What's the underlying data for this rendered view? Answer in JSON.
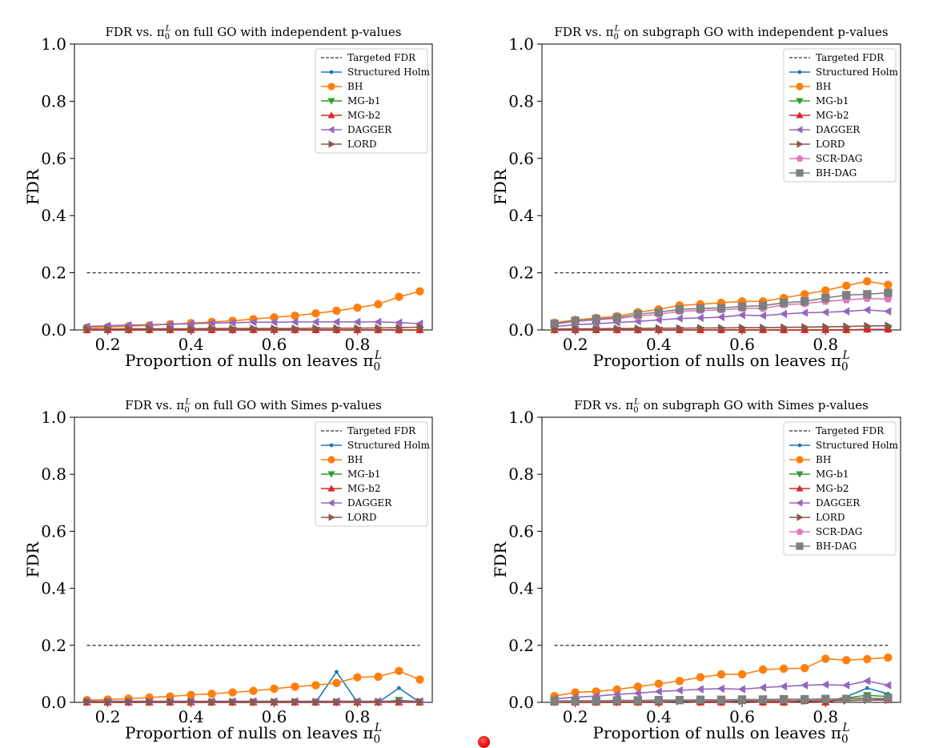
{
  "colors": {
    "target": "#333333",
    "Structured Holm": "#1f77b4",
    "BH": "#ff7f0e",
    "MG-b1": "#2ca02c",
    "MG-b2": "#d62728",
    "DAGGER": "#9467bd",
    "LORD": "#8c564b",
    "SCR-DAG": "#e377c2",
    "BH-DAG": "#7f7f7f"
  },
  "chart_data": [
    {
      "type": "line",
      "title": "FDR vs. π₀ᴸ on full GO with independent p-values",
      "xlabel": "Proportion of nulls on leaves π₀ᴸ",
      "ylabel": "FDR",
      "xlim": [
        0.12,
        0.98
      ],
      "ylim": [
        0,
        1.0
      ],
      "x_ticks": [
        "0.2",
        "0.4",
        "0.6",
        "0.8"
      ],
      "y_ticks": [
        "0.0",
        "0.2",
        "0.4",
        "0.6",
        "0.8",
        "1.0"
      ],
      "grid": false,
      "legend_position": "top-right",
      "x": [
        0.15,
        0.2,
        0.25,
        0.3,
        0.35,
        0.4,
        0.45,
        0.5,
        0.55,
        0.6,
        0.65,
        0.7,
        0.75,
        0.8,
        0.85,
        0.9,
        0.95
      ],
      "target": {
        "name": "Targeted FDR",
        "value": 0.2
      },
      "series": [
        {
          "name": "Structured Holm",
          "marker": "point",
          "values": [
            0,
            0,
            0,
            0,
            0,
            0,
            0,
            0,
            0,
            0,
            0,
            0,
            0,
            0,
            0,
            0,
            0
          ]
        },
        {
          "name": "BH",
          "marker": "circle",
          "values": [
            0.008,
            0.01,
            0.013,
            0.016,
            0.02,
            0.024,
            0.028,
            0.032,
            0.038,
            0.044,
            0.05,
            0.058,
            0.067,
            0.078,
            0.09,
            0.116,
            0.135
          ]
        },
        {
          "name": "MG-b1",
          "marker": "triangle-down",
          "values": [
            0,
            0,
            0,
            0,
            0,
            0,
            0,
            0,
            0,
            0,
            0,
            0,
            0,
            0,
            0,
            0,
            0
          ]
        },
        {
          "name": "MG-b2",
          "marker": "triangle-up",
          "values": [
            0,
            0,
            0,
            0,
            0,
            0,
            0,
            0,
            0,
            0,
            0,
            0,
            0,
            0,
            0,
            0,
            0
          ]
        },
        {
          "name": "DAGGER",
          "marker": "triangle-left",
          "values": [
            0.012,
            0.015,
            0.017,
            0.018,
            0.02,
            0.022,
            0.024,
            0.025,
            0.027,
            0.027,
            0.028,
            0.028,
            0.028,
            0.028,
            0.028,
            0.026,
            0.022
          ]
        },
        {
          "name": "LORD",
          "marker": "triangle-right",
          "values": [
            0.003,
            0.003,
            0.004,
            0.004,
            0.004,
            0.004,
            0.005,
            0.005,
            0.005,
            0.005,
            0.005,
            0.006,
            0.006,
            0.006,
            0.007,
            0.008,
            0.01
          ]
        }
      ]
    },
    {
      "type": "line",
      "title": "FDR vs. π₀ᴸ on subgraph GO with independent p-values",
      "xlabel": "Proportion of nulls on leaves π₀ᴸ",
      "ylabel": "FDR",
      "xlim": [
        0.12,
        0.98
      ],
      "ylim": [
        0,
        1.0
      ],
      "x_ticks": [
        "0.2",
        "0.4",
        "0.6",
        "0.8"
      ],
      "y_ticks": [
        "0.0",
        "0.2",
        "0.4",
        "0.6",
        "0.8",
        "1.0"
      ],
      "grid": false,
      "legend_position": "top-right",
      "x": [
        0.15,
        0.2,
        0.25,
        0.3,
        0.35,
        0.4,
        0.45,
        0.5,
        0.55,
        0.6,
        0.65,
        0.7,
        0.75,
        0.8,
        0.85,
        0.9,
        0.95
      ],
      "target": {
        "name": "Targeted FDR",
        "value": 0.2
      },
      "series": [
        {
          "name": "Structured Holm",
          "marker": "point",
          "values": [
            0,
            0,
            0,
            0,
            0,
            0,
            0,
            0,
            0,
            0,
            0,
            0,
            0,
            0,
            0,
            0,
            0
          ]
        },
        {
          "name": "BH",
          "marker": "circle",
          "values": [
            0.025,
            0.035,
            0.042,
            0.048,
            0.062,
            0.072,
            0.086,
            0.09,
            0.095,
            0.1,
            0.1,
            0.112,
            0.125,
            0.138,
            0.155,
            0.17,
            0.158
          ]
        },
        {
          "name": "MG-b1",
          "marker": "triangle-down",
          "values": [
            0,
            0,
            0,
            0,
            0,
            0,
            0,
            0,
            0,
            0,
            0,
            0,
            0,
            0,
            0,
            0.002,
            0.002
          ]
        },
        {
          "name": "MG-b2",
          "marker": "triangle-up",
          "values": [
            0,
            0,
            0,
            0,
            0,
            0,
            0,
            0,
            0,
            0,
            0,
            0,
            0,
            0,
            0,
            0.002,
            0.002
          ]
        },
        {
          "name": "DAGGER",
          "marker": "triangle-left",
          "values": [
            0.012,
            0.018,
            0.022,
            0.026,
            0.03,
            0.035,
            0.04,
            0.042,
            0.045,
            0.052,
            0.05,
            0.056,
            0.06,
            0.062,
            0.065,
            0.07,
            0.065
          ]
        },
        {
          "name": "LORD",
          "marker": "triangle-right",
          "values": [
            0.003,
            0.004,
            0.004,
            0.005,
            0.005,
            0.006,
            0.006,
            0.007,
            0.007,
            0.008,
            0.008,
            0.009,
            0.01,
            0.011,
            0.012,
            0.014,
            0.015
          ]
        },
        {
          "name": "SCR-DAG",
          "marker": "pentagon",
          "values": [
            0.02,
            0.03,
            0.035,
            0.04,
            0.048,
            0.055,
            0.065,
            0.068,
            0.07,
            0.075,
            0.075,
            0.088,
            0.092,
            0.1,
            0.105,
            0.11,
            0.108
          ]
        },
        {
          "name": "BH-DAG",
          "marker": "square",
          "values": [
            0.022,
            0.032,
            0.038,
            0.043,
            0.055,
            0.062,
            0.072,
            0.075,
            0.077,
            0.082,
            0.085,
            0.095,
            0.1,
            0.112,
            0.122,
            0.125,
            0.13
          ]
        }
      ]
    },
    {
      "type": "line",
      "title": "FDR vs. π₀ᴸ on full GO with Simes p-values",
      "xlabel": "Proportion of nulls on leaves π₀ᴸ",
      "ylabel": "FDR",
      "xlim": [
        0.12,
        0.98
      ],
      "ylim": [
        0,
        1.0
      ],
      "x_ticks": [
        "0.2",
        "0.4",
        "0.6",
        "0.8"
      ],
      "y_ticks": [
        "0.0",
        "0.2",
        "0.4",
        "0.6",
        "0.8",
        "1.0"
      ],
      "grid": false,
      "legend_position": "top-right",
      "x": [
        0.15,
        0.2,
        0.25,
        0.3,
        0.35,
        0.4,
        0.45,
        0.5,
        0.55,
        0.6,
        0.65,
        0.7,
        0.75,
        0.8,
        0.85,
        0.9,
        0.95
      ],
      "target": {
        "name": "Targeted FDR",
        "value": 0.2
      },
      "series": [
        {
          "name": "Structured Holm",
          "marker": "point",
          "values": [
            0,
            0,
            0,
            0,
            0,
            0,
            0,
            0,
            0,
            0,
            0,
            0,
            0.107,
            0,
            0,
            0.05,
            0
          ]
        },
        {
          "name": "BH",
          "marker": "circle",
          "values": [
            0.008,
            0.01,
            0.013,
            0.017,
            0.021,
            0.026,
            0.03,
            0.035,
            0.04,
            0.048,
            0.055,
            0.06,
            0.068,
            0.088,
            0.09,
            0.11,
            0.08
          ]
        },
        {
          "name": "MG-b1",
          "marker": "triangle-down",
          "values": [
            0,
            0,
            0,
            0,
            0,
            0,
            0,
            0,
            0,
            0,
            0,
            0,
            0,
            0,
            0,
            0.008,
            0.002
          ]
        },
        {
          "name": "MG-b2",
          "marker": "triangle-up",
          "values": [
            0,
            0,
            0,
            0,
            0,
            0,
            0,
            0,
            0,
            0,
            0,
            0,
            0,
            0,
            0,
            0,
            0
          ]
        },
        {
          "name": "DAGGER",
          "marker": "triangle-left",
          "values": [
            0.004,
            0.004,
            0.004,
            0.004,
            0.004,
            0.004,
            0.004,
            0.004,
            0.004,
            0.004,
            0.004,
            0.004,
            0.004,
            0.004,
            0.004,
            0.004,
            0.004
          ]
        },
        {
          "name": "LORD",
          "marker": "triangle-right",
          "values": [
            0.002,
            0.002,
            0.002,
            0.002,
            0.002,
            0.002,
            0.002,
            0.002,
            0.002,
            0.002,
            0.002,
            0.002,
            0.002,
            0.002,
            0.002,
            0.002,
            0.002
          ]
        }
      ]
    },
    {
      "type": "line",
      "title": "FDR vs. π₀ᴸ on subgraph GO with Simes p-values",
      "xlabel": "Proportion of nulls on leaves π₀ᴸ",
      "ylabel": "FDR",
      "xlim": [
        0.12,
        0.98
      ],
      "ylim": [
        0,
        1.0
      ],
      "x_ticks": [
        "0.2",
        "0.4",
        "0.6",
        "0.8"
      ],
      "y_ticks": [
        "0.0",
        "0.2",
        "0.4",
        "0.6",
        "0.8",
        "1.0"
      ],
      "grid": false,
      "legend_position": "top-right",
      "x": [
        0.15,
        0.2,
        0.25,
        0.3,
        0.35,
        0.4,
        0.45,
        0.5,
        0.55,
        0.6,
        0.65,
        0.7,
        0.75,
        0.8,
        0.85,
        0.9,
        0.95
      ],
      "target": {
        "name": "Targeted FDR",
        "value": 0.2
      },
      "series": [
        {
          "name": "Structured Holm",
          "marker": "point",
          "values": [
            0,
            0,
            0,
            0,
            0,
            0,
            0.008,
            0,
            0,
            0.008,
            0,
            0,
            0.008,
            0,
            0.02,
            0.05,
            0.03
          ]
        },
        {
          "name": "BH",
          "marker": "circle",
          "values": [
            0.022,
            0.035,
            0.038,
            0.045,
            0.055,
            0.065,
            0.075,
            0.088,
            0.098,
            0.098,
            0.115,
            0.118,
            0.12,
            0.153,
            0.148,
            0.152,
            0.157
          ]
        },
        {
          "name": "MG-b1",
          "marker": "triangle-down",
          "values": [
            0,
            0,
            0,
            0,
            0,
            0,
            0.008,
            0,
            0,
            0.005,
            0,
            0,
            0.005,
            0,
            0.015,
            0.025,
            0.02
          ]
        },
        {
          "name": "MG-b2",
          "marker": "triangle-up",
          "values": [
            0,
            0,
            0,
            0,
            0,
            0,
            0.005,
            0,
            0,
            0.005,
            0,
            0,
            0.005,
            0,
            0.012,
            0.015,
            0.008
          ]
        },
        {
          "name": "DAGGER",
          "marker": "triangle-left",
          "values": [
            0.012,
            0.018,
            0.022,
            0.028,
            0.032,
            0.038,
            0.042,
            0.046,
            0.048,
            0.046,
            0.052,
            0.056,
            0.06,
            0.062,
            0.06,
            0.075,
            0.06
          ]
        },
        {
          "name": "LORD",
          "marker": "triangle-right",
          "values": [
            0.002,
            0.002,
            0.002,
            0.003,
            0.003,
            0.003,
            0.004,
            0.004,
            0.004,
            0.004,
            0.005,
            0.005,
            0.005,
            0.006,
            0.006,
            0.008,
            0.008
          ]
        },
        {
          "name": "SCR-DAG",
          "marker": "pentagon",
          "values": [
            0.004,
            0.005,
            0.005,
            0.006,
            0.006,
            0.007,
            0.007,
            0.008,
            0.008,
            0.009,
            0.009,
            0.01,
            0.01,
            0.011,
            0.012,
            0.013,
            0.013
          ]
        },
        {
          "name": "BH-DAG",
          "marker": "square",
          "values": [
            0.005,
            0.006,
            0.006,
            0.007,
            0.007,
            0.008,
            0.008,
            0.009,
            0.009,
            0.01,
            0.01,
            0.011,
            0.011,
            0.012,
            0.012,
            0.014,
            0.014
          ]
        }
      ]
    }
  ]
}
